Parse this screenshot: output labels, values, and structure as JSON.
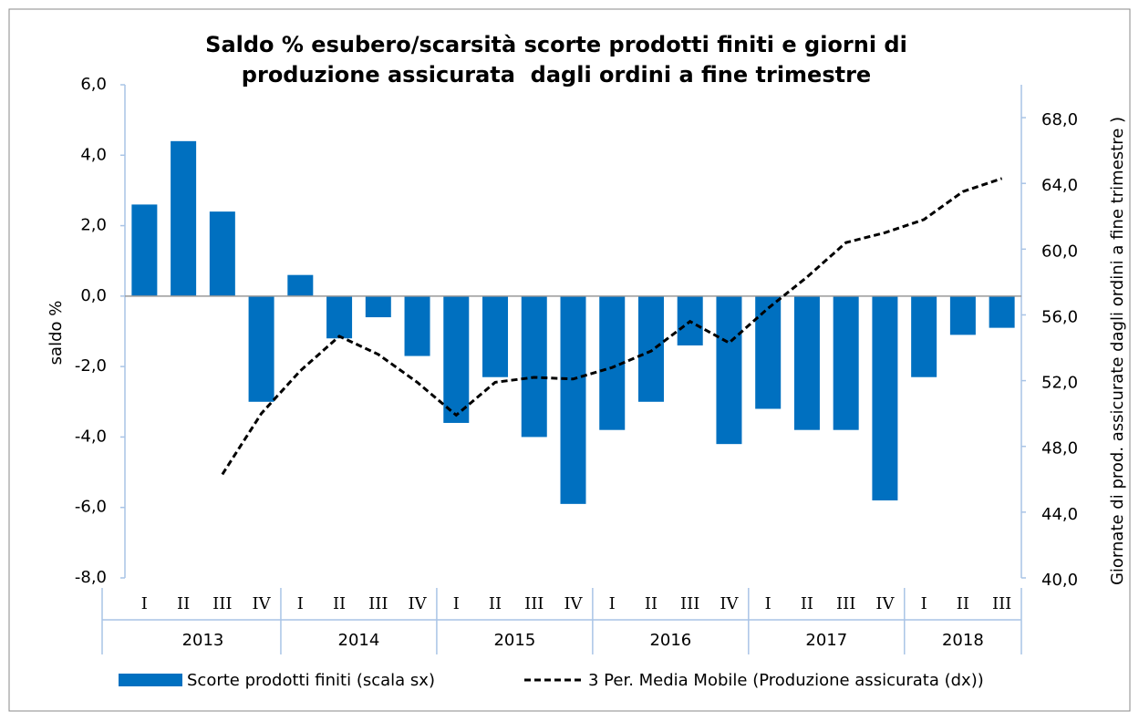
{
  "chart_data": {
    "type": "bar_line",
    "title": [
      "Saldo % esubero/scarsità scorte prodotti finiti e giorni di",
      "produzione assicurata  dagli ordini a fine trimestre"
    ],
    "ylabel": "saldo %",
    "y2label": "Giornate di prod. assicurate dagli ordini a fine trimestre )",
    "groups": [
      {
        "year": "2013",
        "quarters": [
          "I",
          "II",
          "III",
          "IV"
        ]
      },
      {
        "year": "2014",
        "quarters": [
          "I",
          "II",
          "III",
          "IV"
        ]
      },
      {
        "year": "2015",
        "quarters": [
          "I",
          "II",
          "III",
          "IV"
        ]
      },
      {
        "year": "2016",
        "quarters": [
          "I",
          "II",
          "III",
          "IV"
        ]
      },
      {
        "year": "2017",
        "quarters": [
          "I",
          "II",
          "III",
          "IV"
        ]
      },
      {
        "year": "2018",
        "quarters": [
          "I",
          "II",
          "III"
        ]
      }
    ],
    "series": [
      {
        "name": "Scorte prodotti finiti (scala sx)",
        "color": "#0070c0",
        "kind": "bar",
        "axis": "y",
        "values": [
          2.6,
          4.4,
          2.4,
          -3.0,
          0.6,
          -1.2,
          -0.6,
          -1.7,
          -3.6,
          -2.3,
          -4.0,
          -5.9,
          -3.8,
          -3.0,
          -1.4,
          -4.2,
          -3.2,
          -3.8,
          -3.8,
          -5.8,
          -2.3,
          -1.1,
          -0.9
        ]
      },
      {
        "name": "3 Per. Media Mobile (Produzione assicurata (dx))",
        "color": "#000000",
        "kind": "line",
        "axis": "y2",
        "values": [
          null,
          null,
          46.3,
          50.0,
          52.6,
          54.7,
          53.6,
          51.9,
          49.9,
          51.9,
          52.2,
          52.1,
          52.8,
          53.8,
          55.6,
          54.3,
          56.4,
          58.3,
          60.4,
          61.0,
          61.8,
          63.5,
          64.3
        ]
      }
    ],
    "ylim": [
      -8,
      6
    ],
    "yticks": [
      {
        "value": -8,
        "label": "-8,0"
      },
      {
        "value": -6,
        "label": "-6,0"
      },
      {
        "value": -4,
        "label": "-4,0"
      },
      {
        "value": -2,
        "label": "-2,0"
      },
      {
        "value": 0,
        "label": "0,0"
      },
      {
        "value": 2,
        "label": "2,0"
      },
      {
        "value": 4,
        "label": "4,0"
      },
      {
        "value": 6,
        "label": "6,0"
      }
    ],
    "y2lim": [
      40,
      70
    ],
    "y2ticks": [
      {
        "value": 40,
        "label": "40,0"
      },
      {
        "value": 44,
        "label": "44,0"
      },
      {
        "value": 48,
        "label": "48,0"
      },
      {
        "value": 52,
        "label": "52,0"
      },
      {
        "value": 56,
        "label": "56,0"
      },
      {
        "value": 60,
        "label": "60,0"
      },
      {
        "value": 64,
        "label": "64,0"
      },
      {
        "value": 68,
        "label": "68,0"
      }
    ],
    "grid": false
  }
}
